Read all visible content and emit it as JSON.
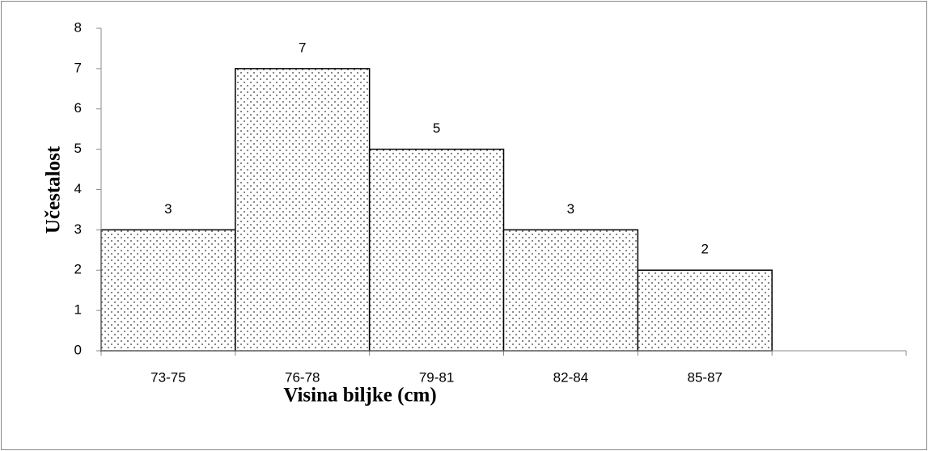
{
  "chart_data": {
    "type": "bar",
    "x_label": "Visina biljke (cm)",
    "y_label": "Učestalost",
    "categories": [
      "73-75",
      "76-78",
      "79-81",
      "82-84",
      "85-87",
      null
    ],
    "values": [
      3,
      7,
      5,
      3,
      2,
      null
    ],
    "ylim": [
      0,
      8
    ],
    "yticks": [
      0,
      1,
      2,
      3,
      4,
      5,
      6,
      7,
      8
    ],
    "grid": false,
    "color": "#ffffff",
    "pattern": "dots"
  }
}
